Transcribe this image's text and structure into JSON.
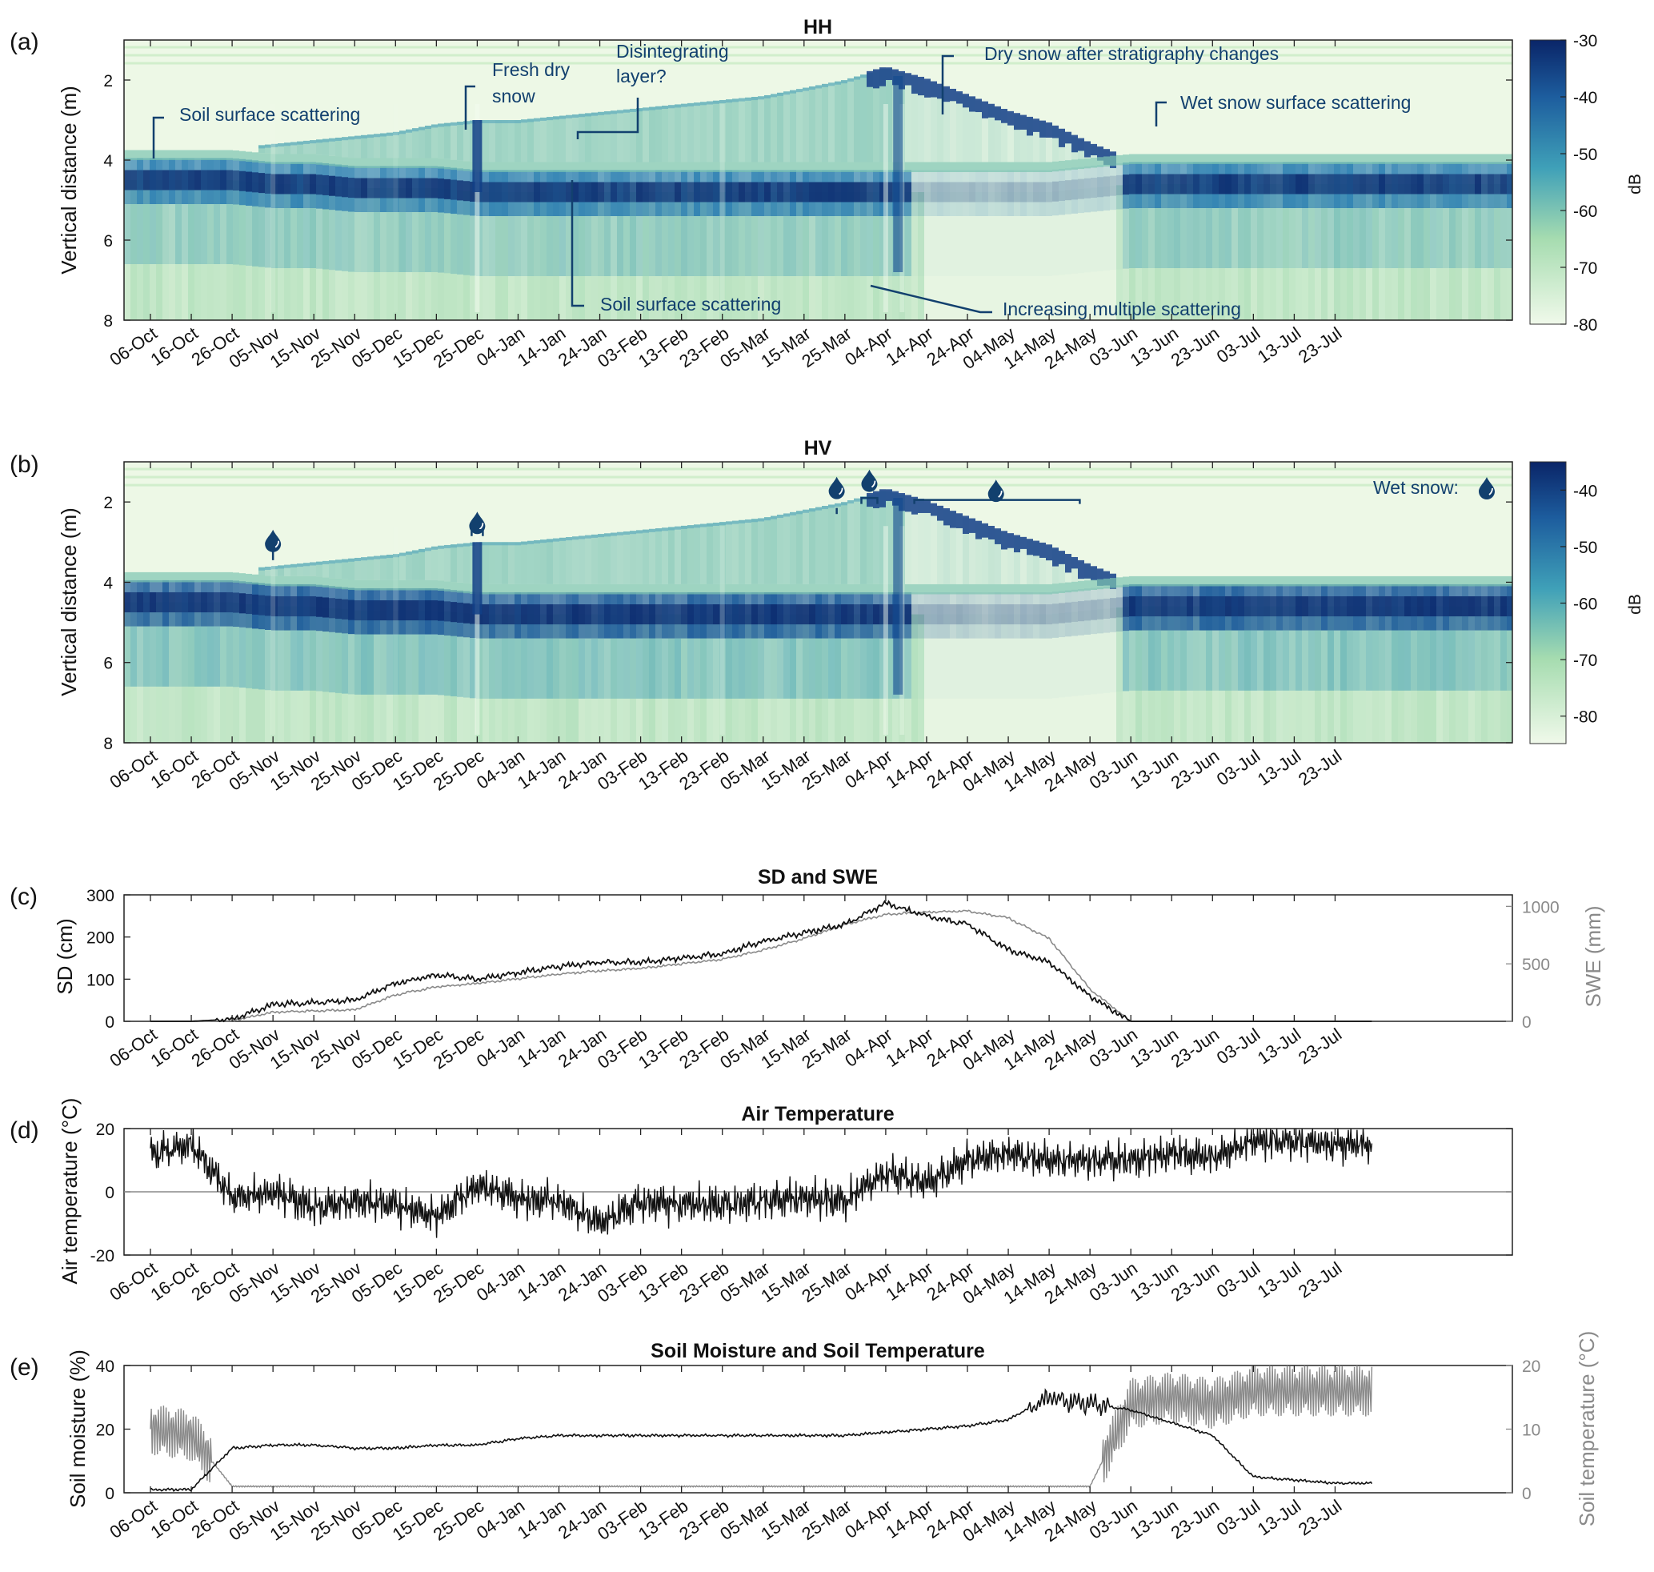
{
  "dates": [
    "06-Oct",
    "16-Oct",
    "26-Oct",
    "05-Nov",
    "15-Nov",
    "25-Nov",
    "05-Dec",
    "15-Dec",
    "25-Dec",
    "04-Jan",
    "14-Jan",
    "24-Jan",
    "03-Feb",
    "13-Feb",
    "23-Feb",
    "05-Mar",
    "15-Mar",
    "25-Mar",
    "04-Apr",
    "14-Apr",
    "24-Apr",
    "04-May",
    "14-May",
    "24-May",
    "03-Jun",
    "13-Jun",
    "23-Jun",
    "03-Jul",
    "13-Jul",
    "23-Jul"
  ],
  "colors": {
    "snow_dark": "#0b2a6e",
    "snow_mid": "#2f7fb5",
    "snow_light": "#9fd3b3",
    "snow_bg": "#edf8e6",
    "anno": "#12406e",
    "line_black": "#111111",
    "line_gray": "#8a8a8a"
  },
  "panels": {
    "a": {
      "letter": "(a)",
      "title": "HH",
      "ylabel": "Vertical distance (m)",
      "yticks": [
        "2",
        "4",
        "6",
        "8"
      ],
      "cb_ticks": [
        "-30",
        "-40",
        "-50",
        "-60",
        "-70",
        "-80"
      ],
      "cb_label": "dB",
      "annotations": [
        "Soil surface scattering",
        "Fresh dry",
        "snow",
        "Disintegrating",
        "layer?",
        "Dry snow after stratigraphy changes",
        "Wet snow surface scattering",
        "Soil surface scattering",
        "Increasing multiple scattering"
      ]
    },
    "b": {
      "letter": "(b)",
      "title": "HV",
      "ylabel": "Vertical distance (m)",
      "yticks": [
        "2",
        "4",
        "6",
        "8"
      ],
      "cb_ticks": [
        "-40",
        "-50",
        "-60",
        "-70",
        "-80"
      ],
      "cb_label": "dB",
      "legend": "Wet snow:",
      "wet_snow_icon": "water-drop-icon"
    },
    "c": {
      "letter": "(c)",
      "title": "SD and SWE",
      "ylabel_left": "SD (cm)",
      "ylabel_right": "SWE (mm)",
      "yticks_left": [
        "0",
        "100",
        "200",
        "300"
      ],
      "yticks_right": [
        "0",
        "500",
        "1000"
      ]
    },
    "d": {
      "letter": "(d)",
      "title": "Air Temperature",
      "ylabel": "Air temperature (°C)",
      "yticks": [
        "-20",
        "0",
        "20"
      ]
    },
    "e": {
      "letter": "(e)",
      "title": "Soil Moisture and Soil Temperature",
      "ylabel_left": "Soil moisture (%)",
      "ylabel_right": "Soil temperature (°C)",
      "yticks_left": [
        "0",
        "20",
        "40"
      ],
      "yticks_right": [
        "0",
        "10",
        "20"
      ]
    }
  },
  "chart_data": [
    {
      "type": "heatmap",
      "title": "HH",
      "ylabel": "Vertical distance (m)",
      "ylim": [
        8,
        1
      ],
      "colorbar_range_db": [
        -80,
        -30
      ],
      "colorbar_label": "dB",
      "snow_surface_m": [
        3.8,
        3.8,
        3.7,
        3.6,
        3.5,
        3.4,
        3.3,
        3.1,
        3.0,
        3.0,
        2.9,
        2.8,
        2.7,
        2.6,
        2.5,
        2.4,
        2.2,
        2.0,
        1.7,
        2.0,
        2.4,
        2.8,
        3.1,
        3.6,
        4.0,
        4.0,
        3.9,
        3.8,
        3.7,
        3.7
      ],
      "soil_surface_m": [
        4.0,
        4.0,
        4.0,
        4.1,
        4.1,
        4.2,
        4.2,
        4.2,
        4.3,
        4.3,
        4.3,
        4.3,
        4.3,
        4.3,
        4.3,
        4.3,
        4.3,
        4.3,
        4.3,
        4.3,
        4.3,
        4.3,
        4.3,
        4.2,
        4.1,
        4.1,
        4.1,
        4.1,
        4.1,
        4.1
      ]
    },
    {
      "type": "heatmap",
      "title": "HV",
      "ylabel": "Vertical distance (m)",
      "ylim": [
        8,
        1
      ],
      "colorbar_range_db": [
        -85,
        -35
      ],
      "colorbar_label": "dB",
      "wet_snow_dates": [
        "05-Nov",
        "25-Dec",
        "15-Mar",
        "04-Apr",
        "24-Apr"
      ]
    },
    {
      "type": "line",
      "title": "SD and SWE",
      "x": "dates",
      "ylabel_left": "SD (cm)",
      "ylim_left": [
        0,
        300
      ],
      "ylabel_right": "SWE (mm)",
      "ylim_right": [
        0,
        1100
      ],
      "series": [
        {
          "name": "SD (cm)",
          "values": [
            0,
            0,
            5,
            40,
            45,
            50,
            90,
            110,
            100,
            115,
            130,
            140,
            140,
            150,
            160,
            190,
            210,
            230,
            280,
            250,
            230,
            170,
            140,
            60,
            0,
            0,
            0,
            0,
            0,
            0
          ]
        },
        {
          "name": "SWE (mm)",
          "values": [
            0,
            0,
            5,
            80,
            90,
            100,
            230,
            300,
            330,
            370,
            410,
            440,
            460,
            500,
            540,
            620,
            720,
            840,
            930,
            950,
            960,
            900,
            720,
            280,
            0,
            0,
            0,
            0,
            0,
            0
          ]
        }
      ]
    },
    {
      "type": "line",
      "title": "Air Temperature",
      "x": "dates",
      "ylabel": "Air temperature (°C)",
      "ylim": [
        -20,
        20
      ],
      "series": [
        {
          "values": [
            12,
            15,
            -2,
            0,
            -5,
            -3,
            -4,
            -8,
            2,
            -2,
            -3,
            -10,
            -3,
            -4,
            -4,
            -3,
            -2,
            -3,
            6,
            3,
            10,
            12,
            10,
            10,
            10,
            12,
            11,
            16,
            16,
            15
          ]
        }
      ]
    },
    {
      "type": "line",
      "title": "Soil Moisture and Soil Temperature",
      "x": "dates",
      "ylabel_left": "Soil moisture (%)",
      "ylim_left": [
        0,
        40
      ],
      "ylabel_right": "Soil temperature (°C)",
      "ylim_right": [
        0,
        20
      ],
      "series": [
        {
          "name": "Soil moisture (%)",
          "values": [
            1,
            1,
            14,
            15,
            15,
            14,
            14,
            15,
            15,
            17,
            18,
            18,
            18,
            18,
            18,
            18,
            18,
            18,
            19,
            20,
            21,
            23,
            30,
            28,
            26,
            22,
            18,
            5,
            4,
            3
          ]
        },
        {
          "name": "Soil temperature (°C)",
          "values": [
            10,
            9,
            1,
            1,
            1,
            1,
            1,
            1,
            1,
            1,
            1,
            1,
            1,
            1,
            1,
            1,
            1,
            1,
            1,
            1,
            1,
            1,
            1,
            1,
            14,
            15,
            14,
            16,
            16,
            16
          ]
        }
      ]
    }
  ]
}
